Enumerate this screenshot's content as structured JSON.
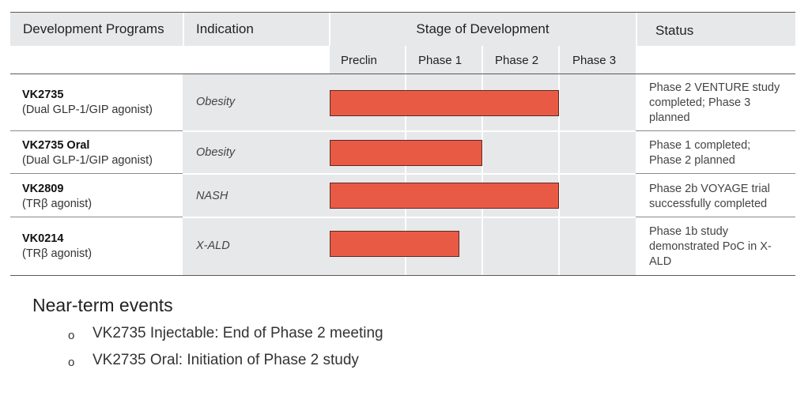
{
  "table": {
    "headers": {
      "program": "Development Programs",
      "indication": "Indication",
      "stage": "Stage of Development",
      "status": "Status"
    },
    "phases": [
      "Preclin",
      "Phase 1",
      "Phase 2",
      "Phase 3"
    ],
    "bar_color": "#e95a45",
    "header_bg": "#e7e8ea",
    "rows": [
      {
        "name": "VK2735",
        "mechanism": "(Dual GLP-1/GIP agonist)",
        "indication": "Obesity",
        "progress_phases": 3.0,
        "status": [
          "Phase 2 VENTURE study",
          "completed; Phase 3",
          "planned"
        ]
      },
      {
        "name": "VK2735 Oral",
        "mechanism": "(Dual GLP-1/GIP agonist)",
        "indication": "Obesity",
        "progress_phases": 2.0,
        "status": [
          "Phase 1 completed;",
          "Phase 2 planned"
        ]
      },
      {
        "name": "VK2809",
        "mechanism": "(TRβ agonist)",
        "indication": "NASH",
        "progress_phases": 3.0,
        "status": [
          "Phase 2b VOYAGE trial",
          "successfully completed"
        ]
      },
      {
        "name": "VK0214",
        "mechanism": "(TRβ agonist)",
        "indication": "X-ALD",
        "progress_phases": 1.7,
        "status": [
          "Phase 1b study",
          "demonstrated PoC in X-",
          "ALD"
        ]
      }
    ]
  },
  "events": {
    "title": "Near-term events",
    "bullet": "o",
    "items": [
      "VK2735 Injectable: End of Phase 2 meeting",
      "VK2735 Oral: Initiation of Phase 2 study"
    ]
  }
}
